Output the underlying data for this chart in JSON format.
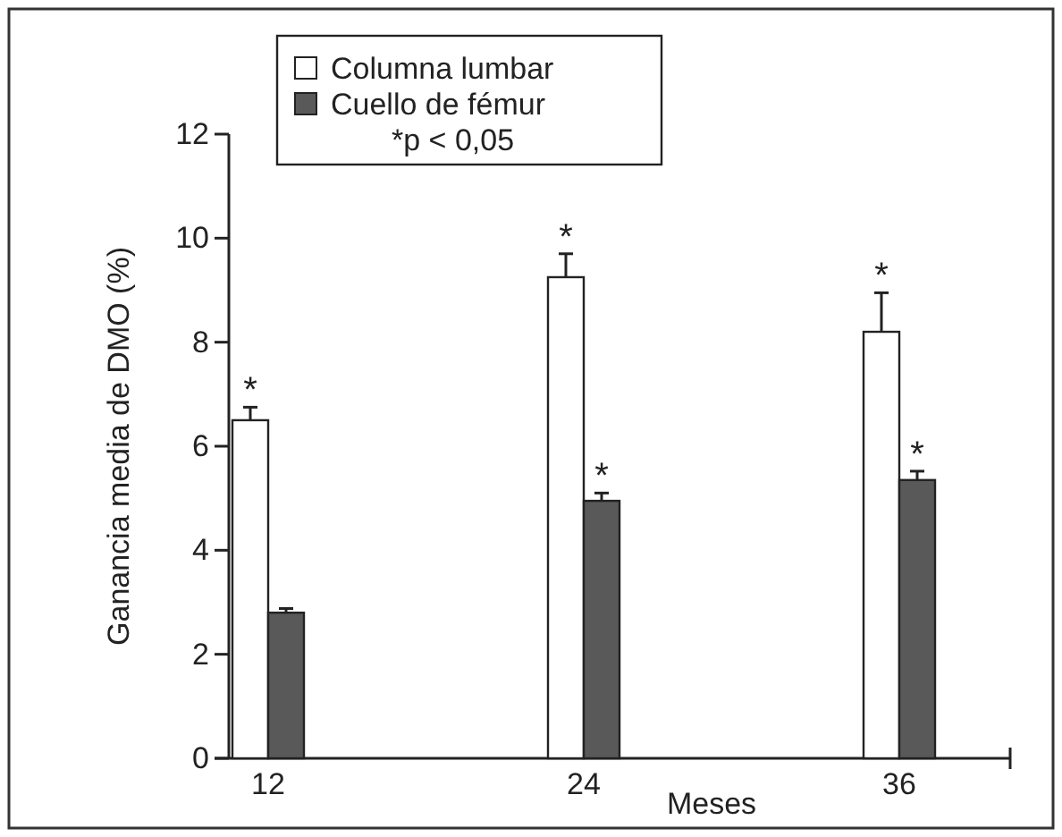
{
  "chart_data": {
    "type": "bar",
    "ylabel": "Ganancia media de DMO (%)",
    "xlabel": "Meses",
    "categories": [
      "12",
      "24",
      "36"
    ],
    "series": [
      {
        "name": "Columna lumbar",
        "color": "#ffffff",
        "values": [
          6.5,
          9.25,
          8.2
        ],
        "value_labels": [
          "*",
          "*",
          "*"
        ],
        "errors": [
          [
            6.5,
            6.75
          ],
          [
            9.25,
            9.7
          ],
          [
            8.2,
            8.95
          ]
        ]
      },
      {
        "name": "Cuello de fémur",
        "color": "#595959",
        "values": [
          2.8,
          4.95,
          5.35
        ],
        "value_labels": [
          null,
          "*",
          "*"
        ],
        "errors": [
          [
            2.8,
            2.88
          ],
          [
            4.95,
            5.1
          ],
          [
            5.35,
            5.52
          ]
        ]
      }
    ],
    "ylim": [
      0,
      12
    ],
    "yticks": [
      0,
      2,
      4,
      6,
      8,
      10,
      12
    ],
    "legend": "top left",
    "grid": false,
    "annotations": [
      "*p < 0,05"
    ]
  }
}
